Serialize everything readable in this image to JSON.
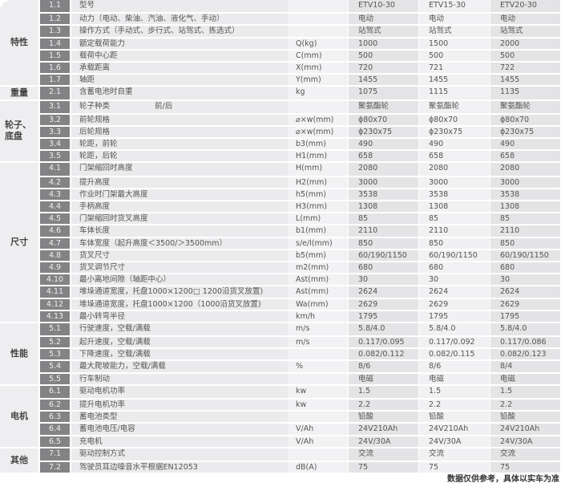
{
  "groups": [
    {
      "category": "特性",
      "rows": [
        {
          "no": "1.1",
          "desc": "型号",
          "unit": "",
          "values": [
            "ETV10-30",
            "ETV15-30",
            "ETV20-30"
          ]
        },
        {
          "no": "1.2",
          "desc": "动力（电动、柴油、汽油、液化气、手动）",
          "unit": "",
          "values": [
            "电动",
            "电动",
            "电动"
          ]
        },
        {
          "no": "1.3",
          "desc": "操作方式（手动式、步行式、站驾式、拣选式）",
          "unit": "",
          "values": [
            "站驾式",
            "站驾式",
            "站驾式"
          ]
        },
        {
          "no": "1.4",
          "desc": "额定载荷能力",
          "unit": "Q(kg)",
          "values": [
            "1000",
            "1500",
            "2000"
          ]
        },
        {
          "no": "1.5",
          "desc": "载荷中心距",
          "unit": "C(mm)",
          "values": [
            "500",
            "500",
            "500"
          ]
        },
        {
          "no": "1.6",
          "desc": "承载距离",
          "unit": "X(mm)",
          "values": [
            "720",
            "721",
            "722"
          ]
        },
        {
          "no": "1.7",
          "desc": "轴距",
          "unit": "Y(mm)",
          "values": [
            "1455",
            "1455",
            "1455"
          ]
        }
      ]
    },
    {
      "category": "重量",
      "rows": [
        {
          "no": "2.1",
          "desc": "含蓄电池时自重",
          "unit": "kg",
          "values": [
            "1075",
            "1115",
            "1135"
          ]
        }
      ]
    },
    {
      "category": "轮子、底盘",
      "rows": [
        {
          "no": "3.1",
          "desc": "轮子种类",
          "extra": "前/后",
          "unit": "",
          "values": [
            "聚氨酯轮",
            "聚氨酯轮",
            "聚氨酯轮"
          ]
        },
        {
          "no": "3.2",
          "desc": "前轮规格",
          "unit": "⌀×w(mm)",
          "values": [
            "ϕ80x70",
            "ϕ80x70",
            "ϕ80x70"
          ]
        },
        {
          "no": "3.3",
          "desc": "后轮规格",
          "unit": "⌀×w(mm)",
          "values": [
            "ϕ230x75",
            "ϕ230x75",
            "ϕ230x75"
          ]
        },
        {
          "no": "3.4",
          "desc": "轮距，前轮",
          "unit": "b3(mm)",
          "values": [
            "490",
            "490",
            "490"
          ]
        },
        {
          "no": "3.5",
          "desc": "轮距，后轮",
          "unit": "H1(mm)",
          "values": [
            "658",
            "658",
            "658"
          ]
        }
      ]
    },
    {
      "category": "尺寸",
      "rows": [
        {
          "no": "4.1",
          "desc": "门架缩回时高度",
          "unit": "H(mm)",
          "values": [
            "2080",
            "2080",
            "2080"
          ]
        },
        {
          "no": "4.2",
          "desc": "提升高度",
          "unit": "H2(mm)",
          "values": [
            "3000",
            "3000",
            "3000"
          ]
        },
        {
          "no": "4.3",
          "desc": "作业时门架最大高度",
          "unit": "h5(mm)",
          "values": [
            "3538",
            "3538",
            "3538"
          ]
        },
        {
          "no": "4.4",
          "desc": "手柄高度",
          "unit": "H3(mm)",
          "values": [
            "1308",
            "1308",
            "1308"
          ]
        },
        {
          "no": "4.5",
          "desc": "门架缩回时货叉高度",
          "unit": "L(mm)",
          "values": [
            "85",
            "85",
            "85"
          ]
        },
        {
          "no": "4.6",
          "desc": "车体长度",
          "unit": "b1(mm)",
          "values": [
            "2110",
            "2110",
            "2110"
          ]
        },
        {
          "no": "4.7",
          "desc": "车体宽度（起升高度＜3500/＞3500mm）",
          "unit": "s/e/l(mm)",
          "values": [
            "850",
            "850",
            "850"
          ]
        },
        {
          "no": "4.8",
          "desc": "货叉尺寸",
          "unit": "b5(mm)",
          "values": [
            "60/190/1150",
            "60/190/1150",
            "60/190/1150"
          ]
        },
        {
          "no": "4.9",
          "desc": "货叉调节尺寸",
          "unit": "m2(mm)",
          "values": [
            "680",
            "680",
            "680"
          ]
        },
        {
          "no": "4.10",
          "desc": "最小离地间隙（轴距中心）",
          "unit": "Ast(mm)",
          "values": [
            "30",
            "30",
            "30"
          ]
        },
        {
          "no": "4.11",
          "desc": "堆垛通道宽度，托盘1000×1200□ 1200沿货叉放置)",
          "unit": "Ast(mm)",
          "values": [
            "2624",
            "2624",
            "2624"
          ]
        },
        {
          "no": "4.12",
          "desc": "堆垛通道宽度，托盘1000×1200（1000沿货叉放置)",
          "unit": "Wa(mm)",
          "values": [
            "2629",
            "2629",
            "2629"
          ]
        },
        {
          "no": "4.13",
          "desc": "最小转弯半径",
          "unit": "km/h",
          "values": [
            "1795",
            "1795",
            "1795"
          ]
        }
      ]
    },
    {
      "category": "性能",
      "rows": [
        {
          "no": "5.1",
          "desc": "行驶速度，空载/满载",
          "unit": "m/s",
          "values": [
            " 5.8/4.0",
            " 5.8/4.0",
            " 5.8/4.0"
          ]
        },
        {
          "no": "5.2",
          "desc": "起升速度，空载/满载",
          "unit": "m/s",
          "values": [
            "0.117/0.095",
            "0.117/0.092",
            "0.117/0.086"
          ]
        },
        {
          "no": "5.3",
          "desc": "下降速度，空载/满载",
          "unit": "",
          "values": [
            "0.082/0.112",
            "0.082/0.115",
            "0.082/0.123"
          ]
        },
        {
          "no": "5.4",
          "desc": "最大爬坡能力，空载/满载",
          "unit": "%",
          "values": [
            "8/6",
            "8/6",
            "8/4"
          ]
        },
        {
          "no": "5.5",
          "desc": "行车制动",
          "unit": "",
          "values": [
            "电磁",
            "电磁",
            "电磁"
          ]
        }
      ]
    },
    {
      "category": "电机",
      "rows": [
        {
          "no": "6.1",
          "desc": "驱动电机功率",
          "unit": "kw",
          "values": [
            "1.5",
            "1.5",
            "1.5"
          ]
        },
        {
          "no": "6.2",
          "desc": "提升电机功率",
          "unit": "kw",
          "values": [
            "2.2",
            "2.2",
            "2.2"
          ]
        },
        {
          "no": "6.3",
          "desc": "蓄电池类型",
          "unit": "",
          "values": [
            "铅酸",
            "铅酸",
            "铅酸"
          ]
        },
        {
          "no": "6.4",
          "desc": "蓄电池电压/电容",
          "unit": "V/Ah",
          "values": [
            "24V210Ah",
            "24V210Ah",
            "24V210Ah"
          ]
        },
        {
          "no": "6.5",
          "desc": "充电机",
          "unit": "V/Ah",
          "values": [
            "24V/30A",
            "24V/30A",
            "24V/30A"
          ]
        }
      ]
    },
    {
      "category": "其他",
      "rows": [
        {
          "no": "7.1",
          "desc": "驱动控制方式",
          "unit": "",
          "values": [
            "交流",
            "交流",
            "交流"
          ]
        },
        {
          "no": "7.2",
          "desc": "驾驶员耳边噪音水平根据EN12053",
          "unit": "dB(A)",
          "values": [
            "75",
            "75",
            "75"
          ]
        }
      ]
    }
  ],
  "note": "数据仅供参考，具体以实车为准"
}
